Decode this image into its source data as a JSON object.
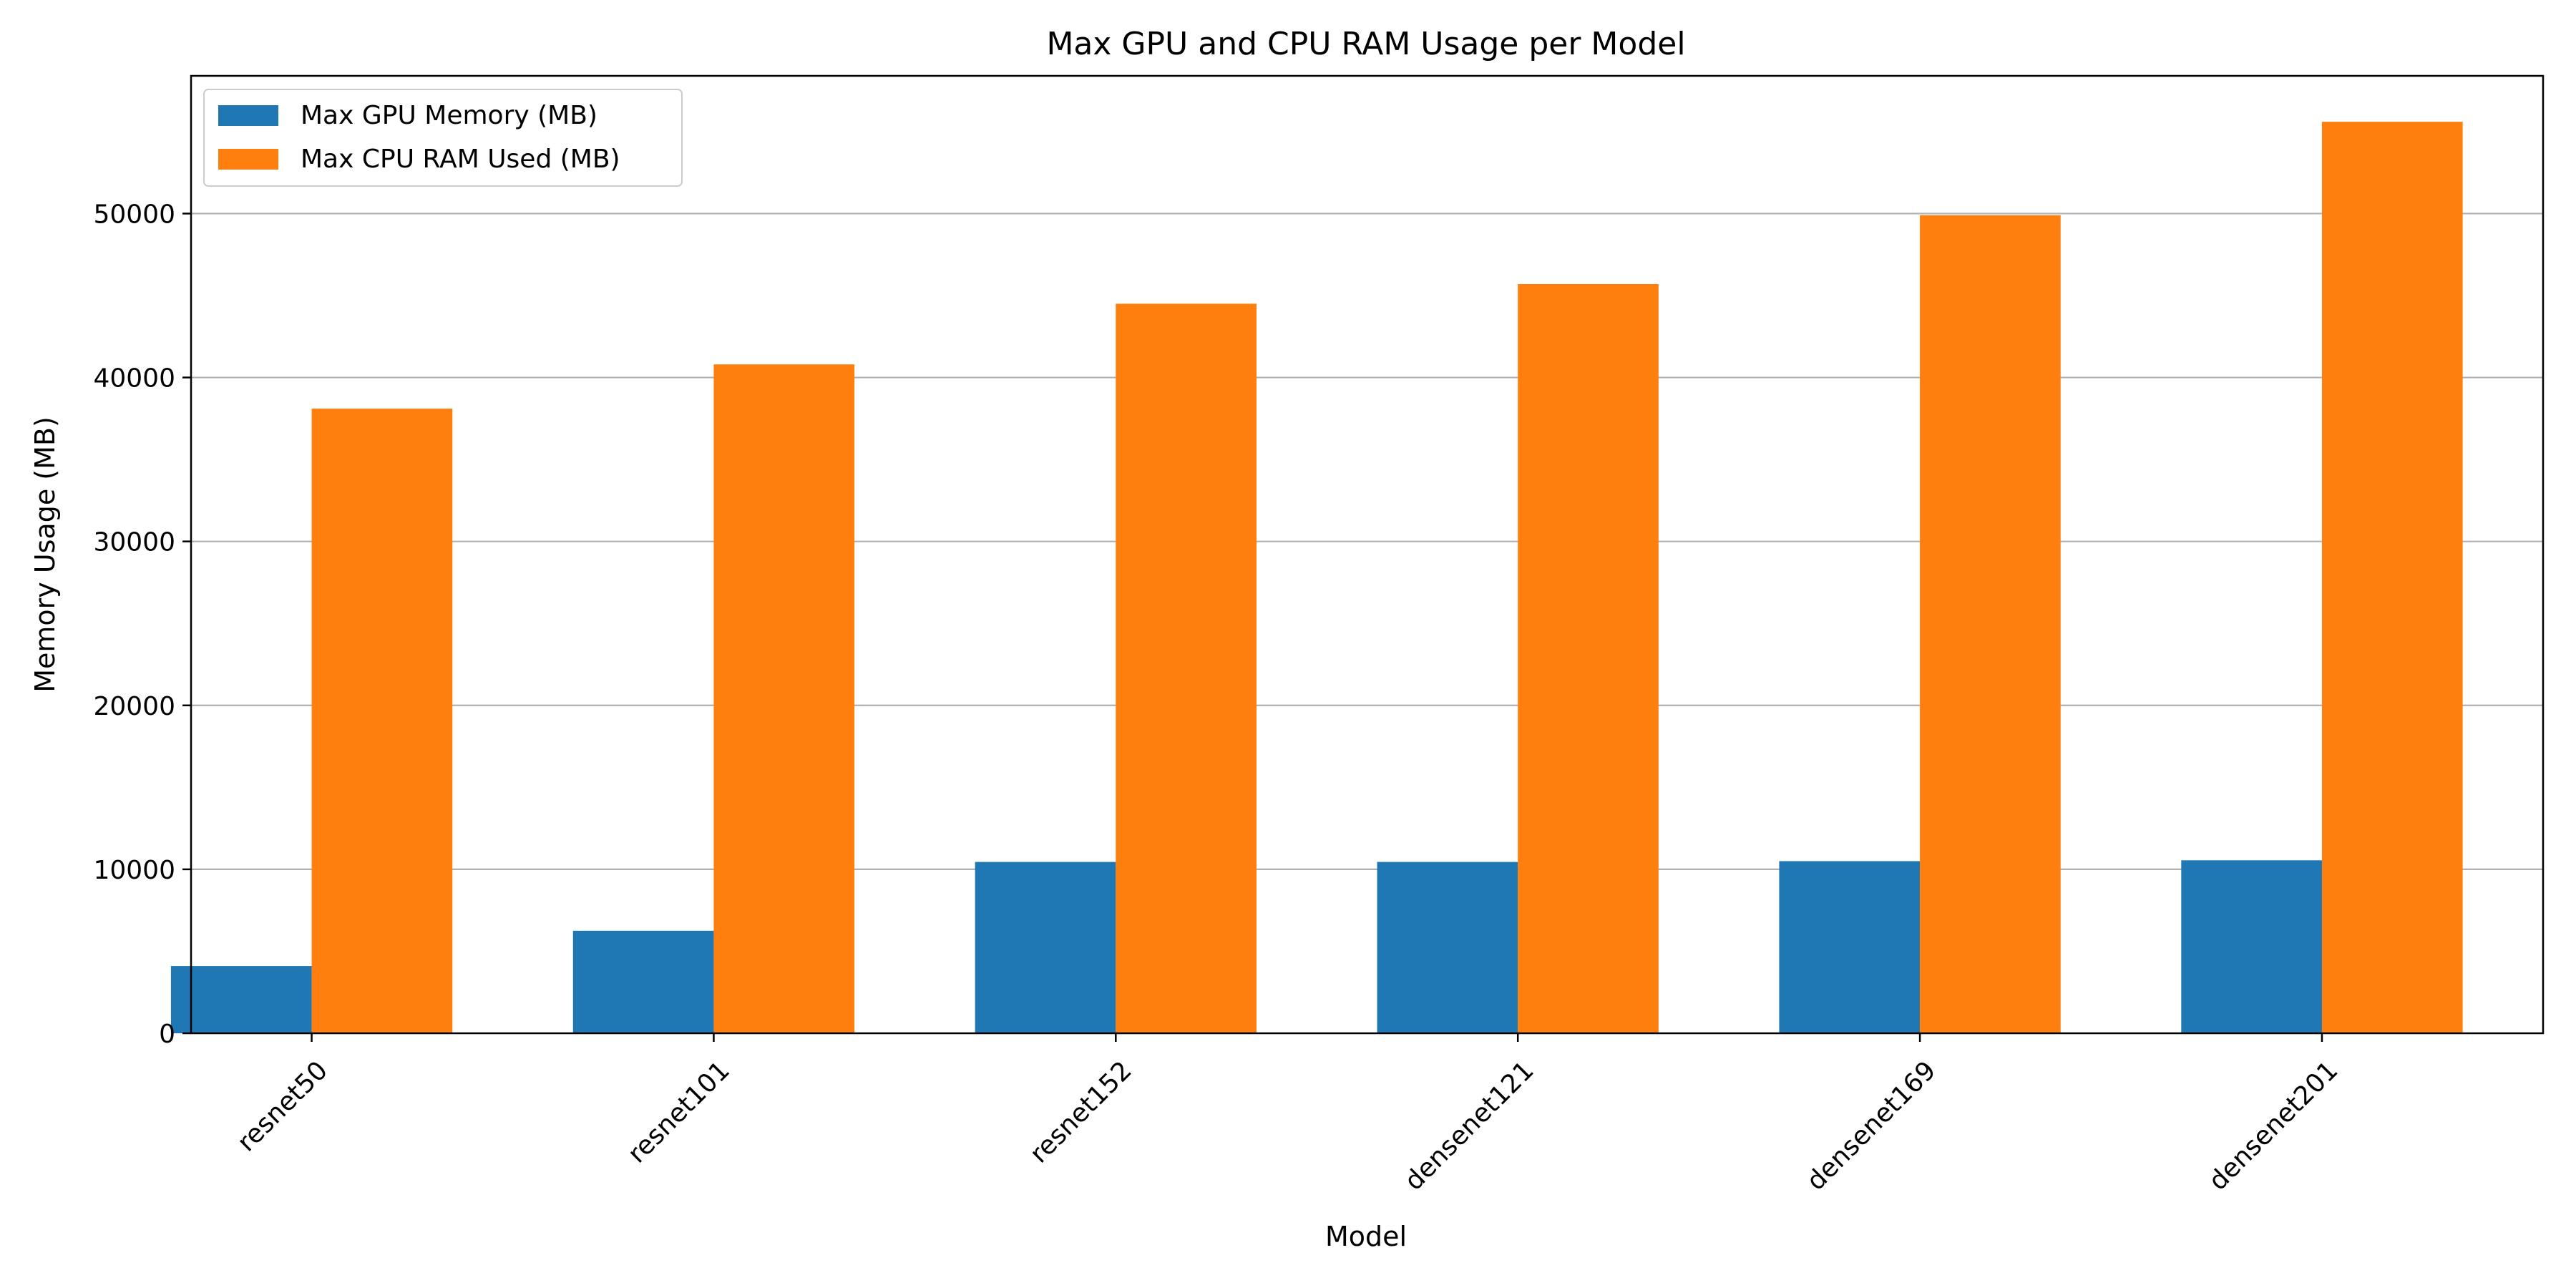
{
  "chart_data": {
    "type": "bar",
    "title": "Max GPU and CPU RAM Usage per Model",
    "xlabel": "Model",
    "ylabel": "Memory Usage (MB)",
    "categories": [
      "resnet50",
      "resnet101",
      "resnet152",
      "densenet121",
      "densenet169",
      "densenet201"
    ],
    "series": [
      {
        "name": "Max GPU Memory (MB)",
        "color": "#1f77b4",
        "values": [
          4100,
          6250,
          10450,
          10450,
          10500,
          10550
        ]
      },
      {
        "name": "Max CPU RAM Used (MB)",
        "color": "#ff7f0e",
        "values": [
          38100,
          40800,
          44500,
          45700,
          49900,
          55600
        ]
      }
    ],
    "ylim": [
      0,
      58400
    ],
    "yticks": [
      0,
      10000,
      20000,
      30000,
      40000,
      50000
    ],
    "grid": "y",
    "legend_position": "top-left",
    "xtick_rotation": 45
  }
}
